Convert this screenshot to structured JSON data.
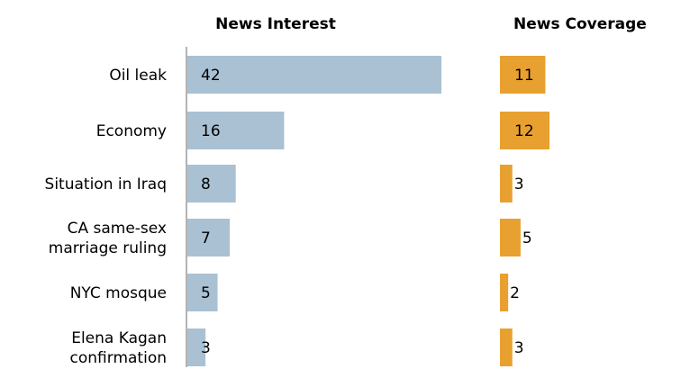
{
  "chart_data": {
    "type": "bar",
    "categories": [
      [
        "Oil leak"
      ],
      [
        "Economy"
      ],
      [
        "Situation in Iraq"
      ],
      [
        "CA same-sex",
        "marriage ruling"
      ],
      [
        "NYC mosque"
      ],
      [
        "Elena Kagan",
        "confirmation"
      ]
    ],
    "series": [
      {
        "name": "News Interest",
        "values": [
          42,
          16,
          8,
          7,
          5,
          3
        ],
        "color": "#a9c1d3"
      },
      {
        "name": "News Coverage",
        "values": [
          11,
          12,
          3,
          5,
          2,
          3
        ],
        "color": "#e8a030"
      }
    ],
    "orientation": "horizontal",
    "panel_titles": [
      "News Interest",
      "News Coverage"
    ],
    "axis_line_color": "#9a9a9a",
    "grid": false
  }
}
